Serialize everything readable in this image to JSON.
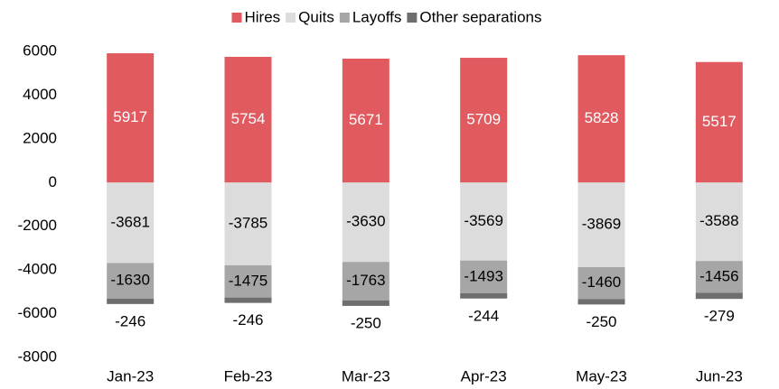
{
  "chart_data": {
    "type": "stacked_bar",
    "categories": [
      "Jan-23",
      "Feb-23",
      "Mar-23",
      "Apr-23",
      "May-23",
      "Jun-23"
    ],
    "series": [
      {
        "name": "Hires",
        "color": "#e05a5f",
        "values": [
          5917,
          5754,
          5671,
          5709,
          5828,
          5517
        ]
      },
      {
        "name": "Quits",
        "color": "#dcdcdc",
        "values": [
          -3681,
          -3785,
          -3630,
          -3569,
          -3869,
          -3588
        ]
      },
      {
        "name": "Layoffs",
        "color": "#a6a6a6",
        "values": [
          -1630,
          -1475,
          -1763,
          -1493,
          -1460,
          -1456
        ]
      },
      {
        "name": "Other separations",
        "color": "#6e6e6e",
        "values": [
          -246,
          -246,
          -250,
          -244,
          -250,
          -279
        ]
      }
    ],
    "ylim": [
      -8000,
      6000
    ],
    "yticks": [
      -8000,
      -6000,
      -4000,
      -2000,
      0,
      2000,
      4000,
      6000
    ],
    "legend": "top",
    "grid": false
  }
}
